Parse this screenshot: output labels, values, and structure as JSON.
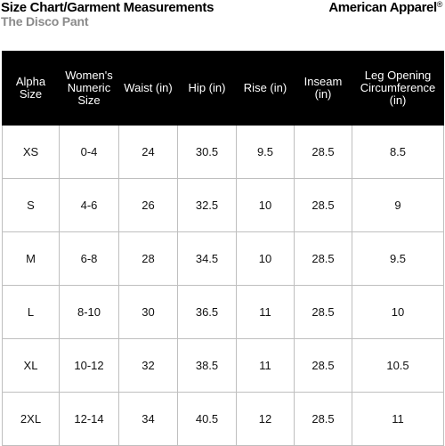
{
  "header": {
    "title": "Size Chart/Garment Measurements",
    "subtitle": "The Disco Pant",
    "brand": "American Apparel",
    "brand_mark": "®"
  },
  "table": {
    "columns": [
      "Alpha Size",
      "Women's Numeric Size",
      "Waist (in)",
      "Hip (in)",
      "Rise (in)",
      "Inseam (in)",
      "Leg Opening Circumference (in)"
    ],
    "rows": [
      [
        "XS",
        "0-4",
        "24",
        "30.5",
        "9.5",
        "28.5",
        "8.5"
      ],
      [
        "S",
        "4-6",
        "26",
        "32.5",
        "10",
        "28.5",
        "9"
      ],
      [
        "M",
        "6-8",
        "28",
        "34.5",
        "10",
        "28.5",
        "9.5"
      ],
      [
        "L",
        "8-10",
        "30",
        "36.5",
        "11",
        "28.5",
        "10"
      ],
      [
        "XL",
        "10-12",
        "32",
        "38.5",
        "11",
        "28.5",
        "10.5"
      ],
      [
        "2XL",
        "12-14",
        "34",
        "40.5",
        "12",
        "28.5",
        "11"
      ]
    ]
  }
}
